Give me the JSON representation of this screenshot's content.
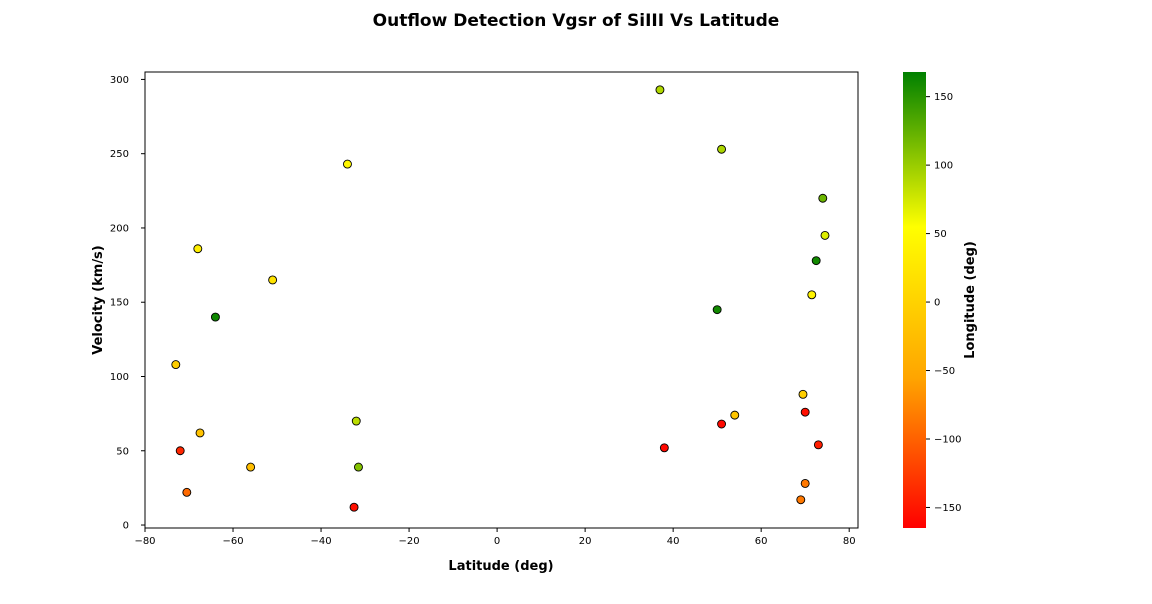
{
  "chart_data": {
    "type": "scatter",
    "title": "Outflow Detection Vgsr of SiIII Vs Latitude",
    "xlabel": "Latitude (deg)",
    "ylabel": "Velocity (km/s)",
    "xlim": [
      -80,
      82
    ],
    "ylim": [
      -2,
      305
    ],
    "xticks": [
      -80,
      -60,
      -40,
      -20,
      0,
      20,
      40,
      60,
      80
    ],
    "yticks": [
      0,
      50,
      100,
      150,
      200,
      250,
      300
    ],
    "grid": false,
    "colorbar": {
      "label": "Longitude (deg)",
      "range": [
        -165,
        168
      ],
      "ticks": [
        -150,
        -100,
        -50,
        0,
        50,
        100,
        150
      ],
      "colors": [
        "#ff0000",
        "#ffa500",
        "#ffff00",
        "#008000"
      ]
    },
    "points": [
      {
        "x": 37.0,
        "y": 293,
        "longitude": 90
      },
      {
        "x": 51.0,
        "y": 253,
        "longitude": 92
      },
      {
        "x": -34.0,
        "y": 243,
        "longitude": 45
      },
      {
        "x": 74.0,
        "y": 220,
        "longitude": 120
      },
      {
        "x": 74.5,
        "y": 195,
        "longitude": 70
      },
      {
        "x": -68.0,
        "y": 186,
        "longitude": 35
      },
      {
        "x": 72.5,
        "y": 178,
        "longitude": 160
      },
      {
        "x": -51.0,
        "y": 165,
        "longitude": 20
      },
      {
        "x": 71.5,
        "y": 155,
        "longitude": 40
      },
      {
        "x": 50.0,
        "y": 145,
        "longitude": 160
      },
      {
        "x": -64.0,
        "y": 140,
        "longitude": 162
      },
      {
        "x": -73.0,
        "y": 108,
        "longitude": -5
      },
      {
        "x": 69.5,
        "y": 88,
        "longitude": -5
      },
      {
        "x": 70.0,
        "y": 76,
        "longitude": -155
      },
      {
        "x": 54.0,
        "y": 74,
        "longitude": -15
      },
      {
        "x": -32.0,
        "y": 70,
        "longitude": 85
      },
      {
        "x": 51.0,
        "y": 68,
        "longitude": -160
      },
      {
        "x": -67.5,
        "y": 62,
        "longitude": -20
      },
      {
        "x": 73.0,
        "y": 54,
        "longitude": -145
      },
      {
        "x": 38.0,
        "y": 52,
        "longitude": -160
      },
      {
        "x": -72.0,
        "y": 50,
        "longitude": -140
      },
      {
        "x": -56.0,
        "y": 39,
        "longitude": -25
      },
      {
        "x": -31.5,
        "y": 39,
        "longitude": 110
      },
      {
        "x": 70.0,
        "y": 28,
        "longitude": -85
      },
      {
        "x": -70.5,
        "y": 22,
        "longitude": -95
      },
      {
        "x": 69.0,
        "y": 17,
        "longitude": -85
      },
      {
        "x": -32.5,
        "y": 12,
        "longitude": -155
      }
    ]
  }
}
